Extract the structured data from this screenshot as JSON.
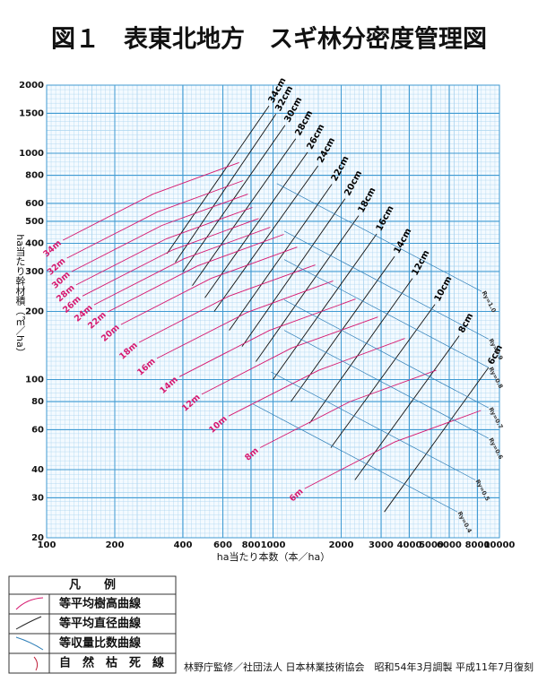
{
  "chart_data": {
    "type": "line",
    "title": "図１　表東北地方　スギ林分密度管理図",
    "xlabel": "ha当たり本数（本／ha）",
    "ylabel": "ha当たり幹材積（㎥／ha）",
    "xscale": "log",
    "yscale": "log",
    "xlim": [
      100,
      10000
    ],
    "ylim": [
      20,
      2000
    ],
    "xticks": [
      100,
      200,
      400,
      600,
      800,
      1000,
      2000,
      3000,
      4000,
      5000,
      6000,
      8000,
      10000
    ],
    "yticks": [
      20,
      30,
      40,
      60,
      80,
      100,
      200,
      300,
      400,
      500,
      600,
      800,
      1000,
      1500,
      2000
    ],
    "grid": true,
    "series": [
      {
        "name": "34cm",
        "group": "diameter",
        "color": "#111111",
        "x": [
          960,
          340
        ],
        "values": [
          1620,
          360
        ]
      },
      {
        "name": "32cm",
        "group": "diameter",
        "color": "#111111",
        "x": [
          1030,
          370
        ],
        "values": [
          1490,
          330
        ]
      },
      {
        "name": "30cm",
        "group": "diameter",
        "color": "#111111",
        "x": [
          1130,
          400
        ],
        "values": [
          1330,
          300
        ]
      },
      {
        "name": "28cm",
        "group": "diameter",
        "color": "#111111",
        "x": [
          1260,
          440
        ],
        "values": [
          1160,
          260
        ]
      },
      {
        "name": "26cm",
        "group": "diameter",
        "color": "#111111",
        "x": [
          1420,
          500
        ],
        "values": [
          1010,
          230
        ]
      },
      {
        "name": "24cm",
        "group": "diameter",
        "color": "#111111",
        "x": [
          1580,
          550
        ],
        "values": [
          880,
          200
        ]
      },
      {
        "name": "22cm",
        "group": "diameter",
        "color": "#111111",
        "x": [
          1820,
          640
        ],
        "values": [
          730,
          165
        ]
      },
      {
        "name": "20cm",
        "group": "diameter",
        "color": "#111111",
        "x": [
          2080,
          730
        ],
        "values": [
          630,
          140
        ]
      },
      {
        "name": "18cm",
        "group": "diameter",
        "color": "#111111",
        "x": [
          2390,
          840
        ],
        "values": [
          530,
          120
        ]
      },
      {
        "name": "16cm",
        "group": "diameter",
        "color": "#111111",
        "x": [
          2870,
          1000
        ],
        "values": [
          440,
          100
        ]
      },
      {
        "name": "14cm",
        "group": "diameter",
        "color": "#111111",
        "x": [
          3440,
          1200
        ],
        "values": [
          350,
          80
        ]
      },
      {
        "name": "12cm",
        "group": "diameter",
        "color": "#111111",
        "x": [
          4130,
          1450
        ],
        "values": [
          280,
          64
        ]
      },
      {
        "name": "10cm",
        "group": "diameter",
        "color": "#111111",
        "x": [
          5190,
          1800
        ],
        "values": [
          215,
          50
        ]
      },
      {
        "name": "8cm",
        "group": "diameter",
        "color": "#111111",
        "x": [
          6640,
          2300
        ],
        "values": [
          156,
          36
        ]
      },
      {
        "name": "6cm",
        "group": "diameter",
        "color": "#111111",
        "x": [
          8950,
          3100
        ],
        "values": [
          113,
          26
        ]
      },
      {
        "name": "34m",
        "group": "height",
        "color": "#d6186f",
        "x": [
          118,
          295,
          708
        ],
        "values": [
          413,
          660,
          910
        ]
      },
      {
        "name": "32m",
        "group": "height",
        "color": "#d6186f",
        "x": [
          123,
          308,
          738
        ],
        "values": [
          344,
          550,
          757
        ]
      },
      {
        "name": "30m",
        "group": "height",
        "color": "#d6186f",
        "x": [
          129,
          323,
          774
        ],
        "values": [
          300,
          480,
          660
        ]
      },
      {
        "name": "28m",
        "group": "height",
        "color": "#d6186f",
        "x": [
          135,
          338,
          810
        ],
        "values": [
          262,
          419,
          576
        ]
      },
      {
        "name": "26m",
        "group": "height",
        "color": "#d6186f",
        "x": [
          144,
          360,
          864
        ],
        "values": [
          234,
          374,
          515
        ]
      },
      {
        "name": "24m",
        "group": "height",
        "color": "#d6186f",
        "x": [
          162,
          405,
          972
        ],
        "values": [
          214,
          342,
          471
        ]
      },
      {
        "name": "22m",
        "group": "height",
        "color": "#d6186f",
        "x": [
          186,
          465,
          1116
        ],
        "values": [
          199,
          318,
          438
        ]
      },
      {
        "name": "20m",
        "group": "height",
        "color": "#d6186f",
        "x": [
          213,
          533,
          1278
        ],
        "values": [
          175,
          280,
          385
        ]
      },
      {
        "name": "18m",
        "group": "height",
        "color": "#d6186f",
        "x": [
          256,
          640,
          1536
        ],
        "values": [
          146,
          234,
          321
        ]
      },
      {
        "name": "16m",
        "group": "height",
        "color": "#d6186f",
        "x": [
          307,
          768,
          1842
        ],
        "values": [
          124,
          198,
          273
        ]
      },
      {
        "name": "14m",
        "group": "height",
        "color": "#d6186f",
        "x": [
          386,
          965,
          2316
        ],
        "values": [
          103,
          165,
          227
        ]
      },
      {
        "name": "12m",
        "group": "height",
        "color": "#d6186f",
        "x": [
          484,
          1210,
          2904
        ],
        "values": [
          86,
          138,
          189
        ]
      },
      {
        "name": "10m",
        "group": "height",
        "color": "#d6186f",
        "x": [
          637,
          1593,
          3822
        ],
        "values": [
          69,
          110,
          152
        ]
      },
      {
        "name": "8m",
        "group": "height",
        "color": "#d6186f",
        "x": [
          877,
          2193,
          5262
        ],
        "values": [
          50,
          80,
          110
        ]
      },
      {
        "name": "6m",
        "group": "height",
        "color": "#d6186f",
        "x": [
          1380,
          3450,
          8280
        ],
        "values": [
          33,
          53,
          73
        ]
      },
      {
        "name": "Ry=1.0",
        "group": "ry",
        "color": "#2f7fb8",
        "x": [
          8340,
          1040
        ],
        "values": [
          245,
          735
        ]
      },
      {
        "name": "Ry=0.9",
        "group": "ry",
        "color": "#2f7fb8",
        "x": [
          8950,
          1120
        ],
        "values": [
          151,
          453
        ]
      },
      {
        "name": "Ry=0.8",
        "group": "ry",
        "color": "#2f7fb8",
        "x": [
          8950,
          1120
        ],
        "values": [
          113,
          339
        ]
      },
      {
        "name": "Ry=0.7",
        "group": "ry",
        "color": "#2f7fb8",
        "x": [
          8950,
          1120
        ],
        "values": [
          75,
          225
        ]
      },
      {
        "name": "Ry=0.6",
        "group": "ry",
        "color": "#2f7fb8",
        "x": [
          8950,
          1120
        ],
        "values": [
          55,
          165
        ]
      },
      {
        "name": "Ry=0.5",
        "group": "ry",
        "color": "#2f7fb8",
        "x": [
          7820,
          980
        ],
        "values": [
          36,
          108
        ]
      },
      {
        "name": "Ry=0.4",
        "group": "ry",
        "color": "#2f7fb8",
        "x": [
          6520,
          815
        ],
        "values": [
          26,
          78
        ]
      }
    ]
  },
  "legend": {
    "title": "凡　　例",
    "items": [
      "等平均樹高曲線",
      "等平均直径曲線",
      "等収量比数曲線",
      "自　然　枯　死　線"
    ]
  },
  "footer": "林野庁監修／社団法人 日本林業技術協会　昭和54年3月調製 平成11年7月復刻"
}
